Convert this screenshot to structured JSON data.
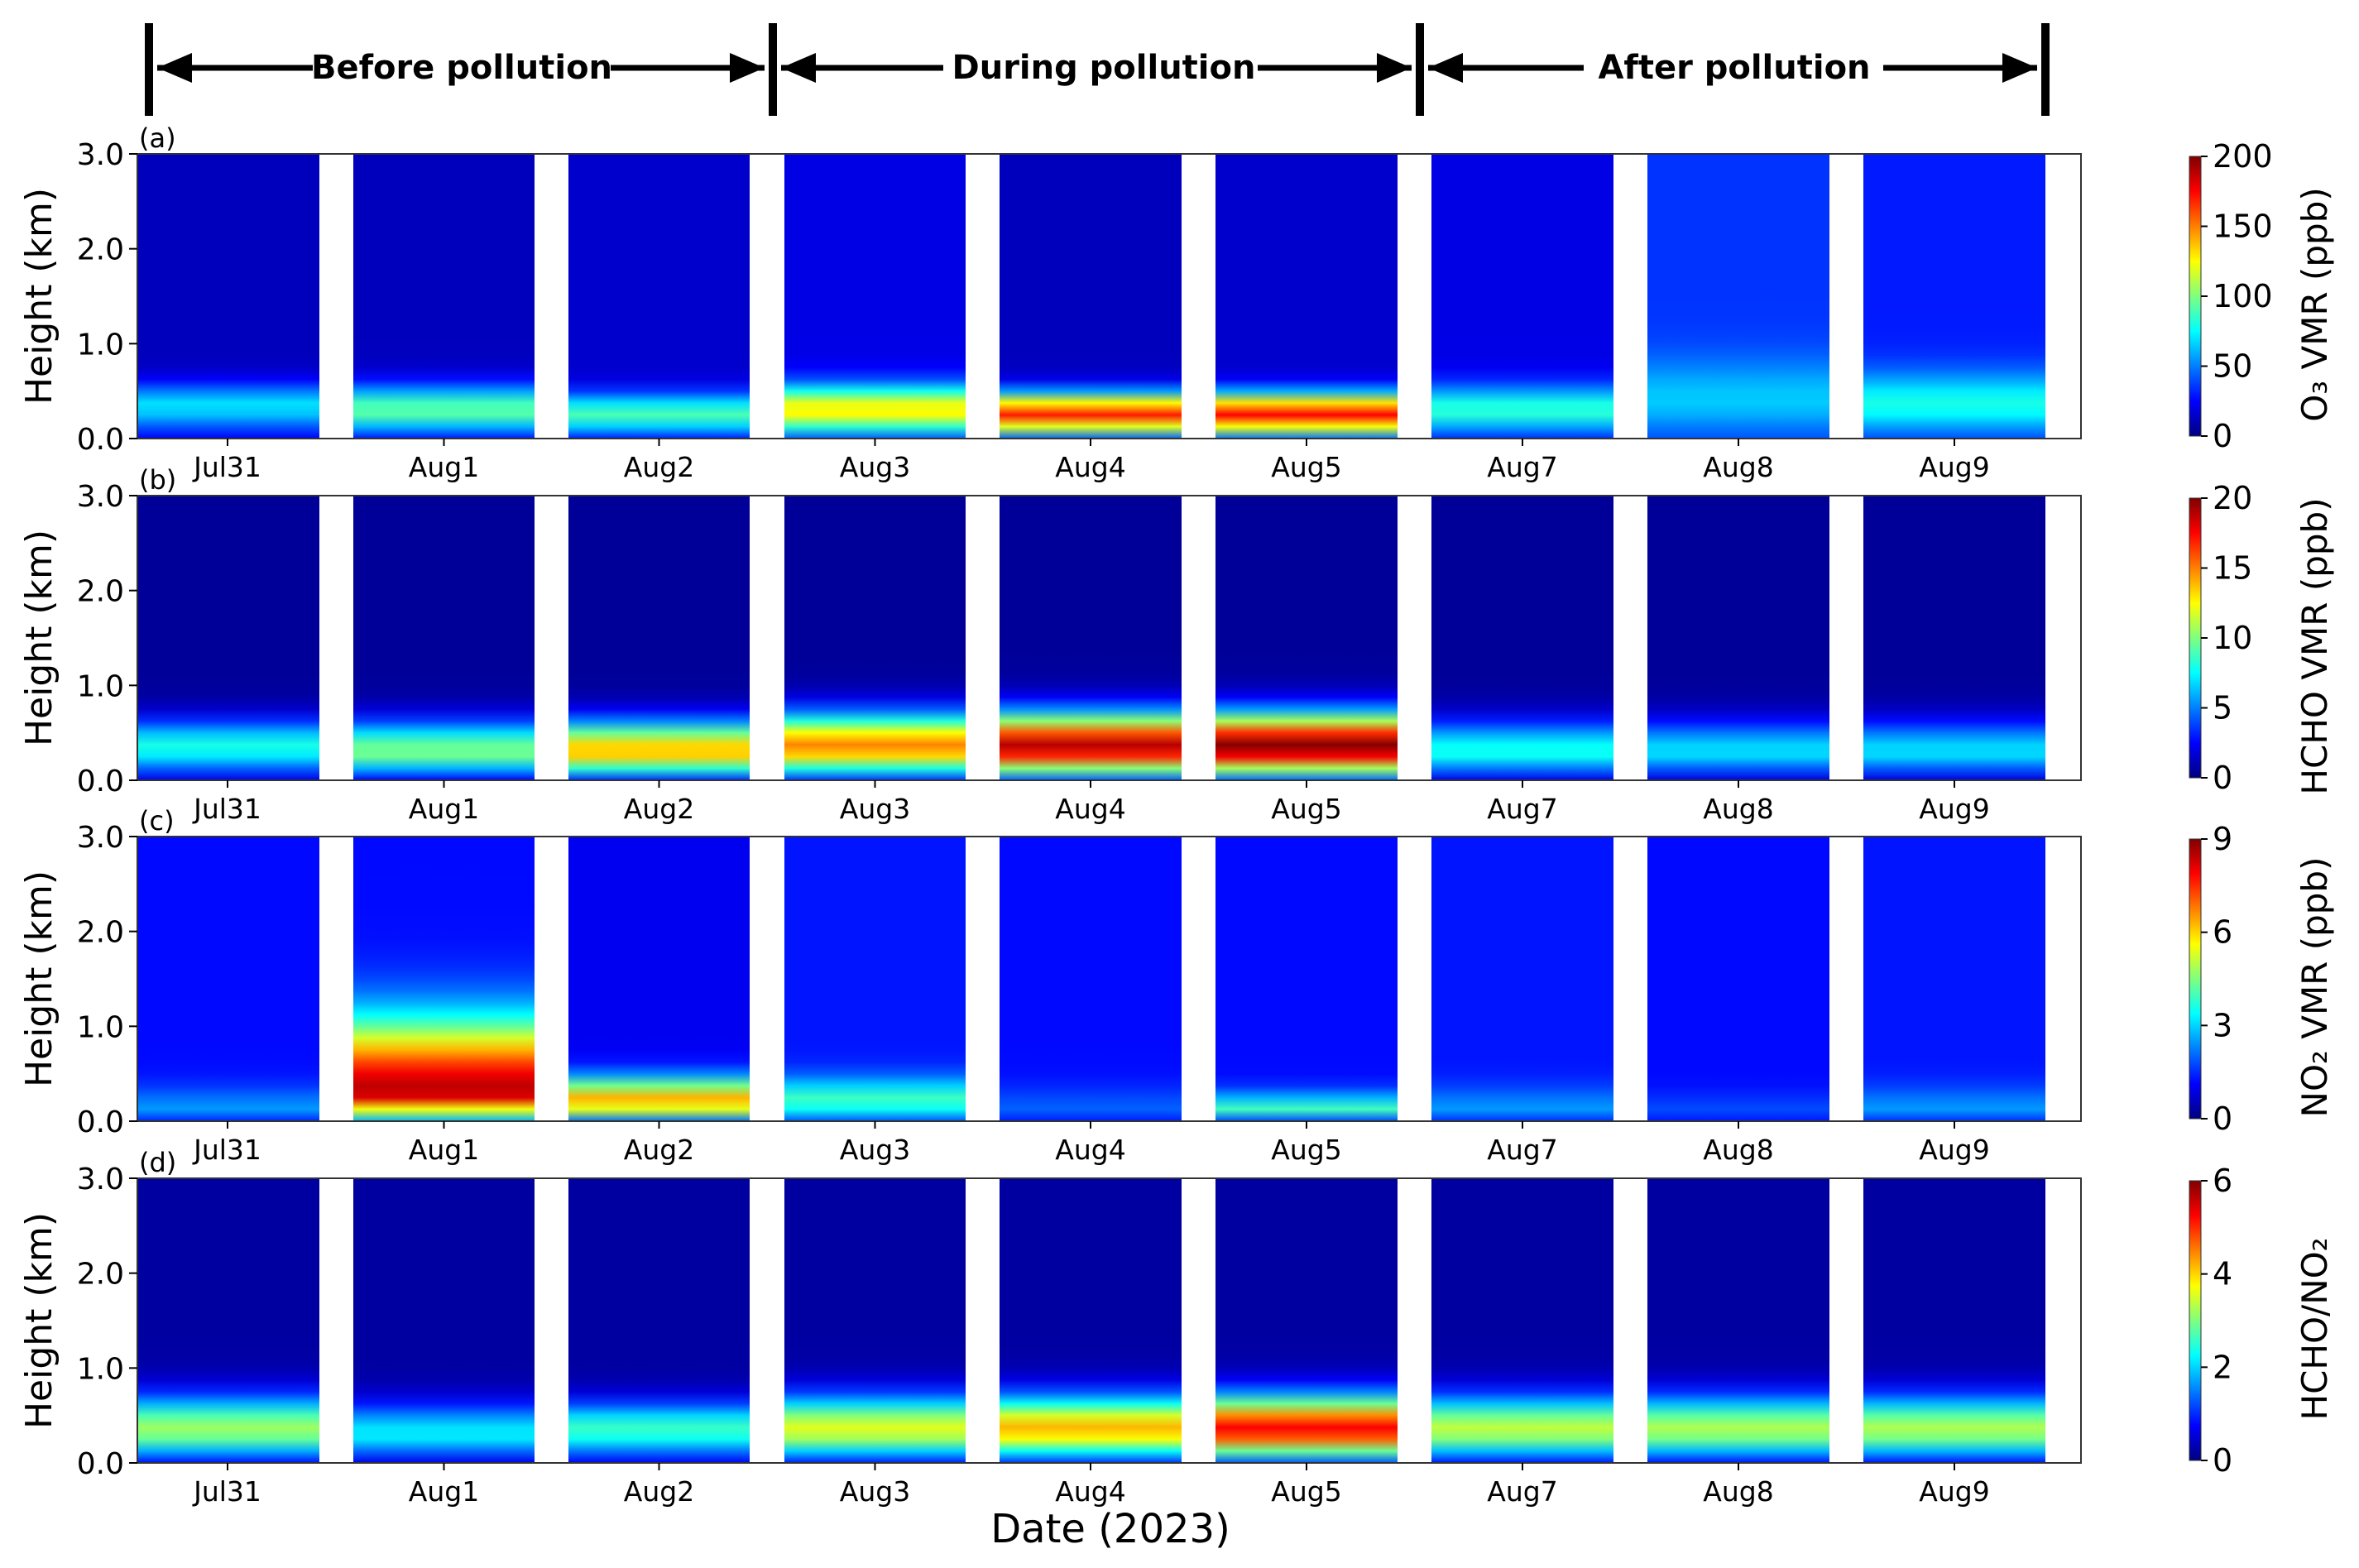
{
  "periods": [
    {
      "label": "Before pollution"
    },
    {
      "label": "During pollution"
    },
    {
      "label": "After pollution"
    }
  ],
  "xlabel": "Date (2023)",
  "ylabel": "Height (km)",
  "y_ticks": [
    "0.0",
    "1.0",
    "2.0",
    "3.0"
  ],
  "days": [
    "Jul31",
    "Aug1",
    "Aug2",
    "Aug3",
    "Aug4",
    "Aug5",
    "Aug7",
    "Aug8",
    "Aug9"
  ],
  "colormap": [
    "#00007f",
    "#0000ff",
    "#007fff",
    "#00ffff",
    "#7fff7f",
    "#ffff00",
    "#ff7f00",
    "#ff0000",
    "#7f0000"
  ],
  "panels": [
    {
      "tag": "(a)",
      "cbar_label": "O₃ VMR (ppb)",
      "cbar_ticks": [
        "0",
        "50",
        "100",
        "150",
        "200"
      ],
      "vmax": 200
    },
    {
      "tag": "(b)",
      "cbar_label": "HCHO VMR (ppb)",
      "cbar_ticks": [
        "0",
        "5",
        "10",
        "15",
        "20"
      ],
      "vmax": 20
    },
    {
      "tag": "(c)",
      "cbar_label": "NO₂ VMR (ppb)",
      "cbar_ticks": [
        "0",
        "3",
        "6",
        "9"
      ],
      "vmax": 9
    },
    {
      "tag": "(d)",
      "cbar_label": "HCHO/NO₂",
      "cbar_ticks": [
        "0",
        "2",
        "4",
        "6"
      ],
      "vmax": 6
    }
  ],
  "chart_data": [
    {
      "type": "heatmap",
      "title": "(a)",
      "xlabel": "",
      "ylabel": "Height (km)",
      "ylim": [
        0,
        3.0
      ],
      "categories": [
        "Jul31",
        "Aug1",
        "Aug2",
        "Aug3",
        "Aug4",
        "Aug5",
        "Aug7",
        "Aug8",
        "Aug9"
      ],
      "colorbar": {
        "label": "O₃ VMR (ppb)",
        "range": [
          0,
          200
        ]
      },
      "profiles": [
        {
          "day": "Jul31",
          "peak_height_km": 0.35,
          "peak_value": 70,
          "layer_top_km": 0.7,
          "background": 12
        },
        {
          "day": "Aug1",
          "peak_height_km": 0.3,
          "peak_value": 95,
          "layer_top_km": 0.7,
          "background": 12
        },
        {
          "day": "Aug2",
          "peak_height_km": 0.25,
          "peak_value": 90,
          "layer_top_km": 0.6,
          "background": 15
        },
        {
          "day": "Aug3",
          "peak_height_km": 0.3,
          "peak_value": 130,
          "layer_top_km": 0.7,
          "background": 20
        },
        {
          "day": "Aug4",
          "peak_height_km": 0.25,
          "peak_value": 170,
          "layer_top_km": 0.6,
          "background": 12
        },
        {
          "day": "Aug5",
          "peak_height_km": 0.25,
          "peak_value": 175,
          "layer_top_km": 0.6,
          "background": 15
        },
        {
          "day": "Aug7",
          "peak_height_km": 0.3,
          "peak_value": 85,
          "layer_top_km": 0.7,
          "background": 20
        },
        {
          "day": "Aug8",
          "peak_height_km": 0.4,
          "peak_value": 65,
          "layer_top_km": 1.1,
          "background": 35
        },
        {
          "day": "Aug9",
          "peak_height_km": 0.35,
          "peak_value": 80,
          "layer_top_km": 0.9,
          "background": 30
        }
      ]
    },
    {
      "type": "heatmap",
      "title": "(b)",
      "xlabel": "",
      "ylabel": "Height (km)",
      "ylim": [
        0,
        3.0
      ],
      "categories": [
        "Jul31",
        "Aug1",
        "Aug2",
        "Aug3",
        "Aug4",
        "Aug5",
        "Aug7",
        "Aug8",
        "Aug9"
      ],
      "colorbar": {
        "label": "HCHO VMR (ppb)",
        "range": [
          0,
          20
        ]
      },
      "profiles": [
        {
          "day": "Jul31",
          "peak_height_km": 0.35,
          "peak_value": 8,
          "layer_top_km": 0.8,
          "background": 0.5
        },
        {
          "day": "Aug1",
          "peak_height_km": 0.3,
          "peak_value": 10,
          "layer_top_km": 0.8,
          "background": 0.5
        },
        {
          "day": "Aug2",
          "peak_height_km": 0.3,
          "peak_value": 14,
          "layer_top_km": 0.8,
          "background": 0.5
        },
        {
          "day": "Aug3",
          "peak_height_km": 0.35,
          "peak_value": 15,
          "layer_top_km": 0.9,
          "background": 0.5
        },
        {
          "day": "Aug4",
          "peak_height_km": 0.35,
          "peak_value": 19,
          "layer_top_km": 0.9,
          "background": 0.5
        },
        {
          "day": "Aug5",
          "peak_height_km": 0.35,
          "peak_value": 20,
          "layer_top_km": 0.9,
          "background": 0.5
        },
        {
          "day": "Aug7",
          "peak_height_km": 0.3,
          "peak_value": 8,
          "layer_top_km": 0.8,
          "background": 0.5
        },
        {
          "day": "Aug8",
          "peak_height_km": 0.3,
          "peak_value": 7,
          "layer_top_km": 0.8,
          "background": 0.5
        },
        {
          "day": "Aug9",
          "peak_height_km": 0.3,
          "peak_value": 7,
          "layer_top_km": 0.8,
          "background": 0.5
        }
      ]
    },
    {
      "type": "heatmap",
      "title": "(c)",
      "xlabel": "",
      "ylabel": "Height (km)",
      "ylim": [
        0,
        3.0
      ],
      "categories": [
        "Jul31",
        "Aug1",
        "Aug2",
        "Aug3",
        "Aug4",
        "Aug5",
        "Aug7",
        "Aug8",
        "Aug9"
      ],
      "colorbar": {
        "label": "NO₂ VMR (ppb)",
        "range": [
          0,
          9
        ]
      },
      "profiles": [
        {
          "day": "Jul31",
          "peak_height_km": 0.1,
          "peak_value": 2.5,
          "layer_top_km": 0.5,
          "background": 1.2
        },
        {
          "day": "Aug1",
          "peak_height_km": 0.3,
          "peak_value": 8.5,
          "layer_top_km": 1.5,
          "background": 1.2
        },
        {
          "day": "Aug2",
          "peak_height_km": 0.2,
          "peak_value": 6.5,
          "layer_top_km": 0.6,
          "background": 1.0
        },
        {
          "day": "Aug3",
          "peak_height_km": 0.2,
          "peak_value": 4,
          "layer_top_km": 0.6,
          "background": 1.3
        },
        {
          "day": "Aug4",
          "peak_height_km": 0.1,
          "peak_value": 2,
          "layer_top_km": 0.5,
          "background": 1.2
        },
        {
          "day": "Aug5",
          "peak_height_km": 0.1,
          "peak_value": 4,
          "layer_top_km": 0.4,
          "background": 1.2
        },
        {
          "day": "Aug7",
          "peak_height_km": 0.1,
          "peak_value": 2.5,
          "layer_top_km": 0.5,
          "background": 1.3
        },
        {
          "day": "Aug8",
          "peak_height_km": 0.1,
          "peak_value": 1.8,
          "layer_top_km": 0.4,
          "background": 1.2
        },
        {
          "day": "Aug9",
          "peak_height_km": 0.1,
          "peak_value": 2.5,
          "layer_top_km": 0.5,
          "background": 1.3
        }
      ]
    },
    {
      "type": "heatmap",
      "title": "(d)",
      "xlabel": "Date (2023)",
      "ylabel": "Height (km)",
      "ylim": [
        0,
        3.0
      ],
      "categories": [
        "Jul31",
        "Aug1",
        "Aug2",
        "Aug3",
        "Aug4",
        "Aug5",
        "Aug7",
        "Aug8",
        "Aug9"
      ],
      "colorbar": {
        "label": "HCHO/NO₂",
        "range": [
          0,
          6
        ]
      },
      "profiles": [
        {
          "day": "Jul31",
          "peak_height_km": 0.35,
          "peak_value": 3.2,
          "layer_top_km": 0.9,
          "background": 0.2
        },
        {
          "day": "Aug1",
          "peak_height_km": 0.3,
          "peak_value": 2.2,
          "layer_top_km": 0.8,
          "background": 0.2
        },
        {
          "day": "Aug2",
          "peak_height_km": 0.35,
          "peak_value": 2.6,
          "layer_top_km": 0.8,
          "background": 0.2
        },
        {
          "day": "Aug3",
          "peak_height_km": 0.35,
          "peak_value": 3.6,
          "layer_top_km": 0.9,
          "background": 0.2
        },
        {
          "day": "Aug4",
          "peak_height_km": 0.35,
          "peak_value": 4.2,
          "layer_top_km": 0.9,
          "background": 0.2
        },
        {
          "day": "Aug5",
          "peak_height_km": 0.35,
          "peak_value": 5.3,
          "layer_top_km": 0.9,
          "background": 0.2
        },
        {
          "day": "Aug7",
          "peak_height_km": 0.35,
          "peak_value": 3.4,
          "layer_top_km": 0.9,
          "background": 0.2
        },
        {
          "day": "Aug8",
          "peak_height_km": 0.35,
          "peak_value": 3.3,
          "layer_top_km": 0.9,
          "background": 0.2
        },
        {
          "day": "Aug9",
          "peak_height_km": 0.35,
          "peak_value": 3.3,
          "layer_top_km": 0.9,
          "background": 0.2
        }
      ]
    }
  ]
}
